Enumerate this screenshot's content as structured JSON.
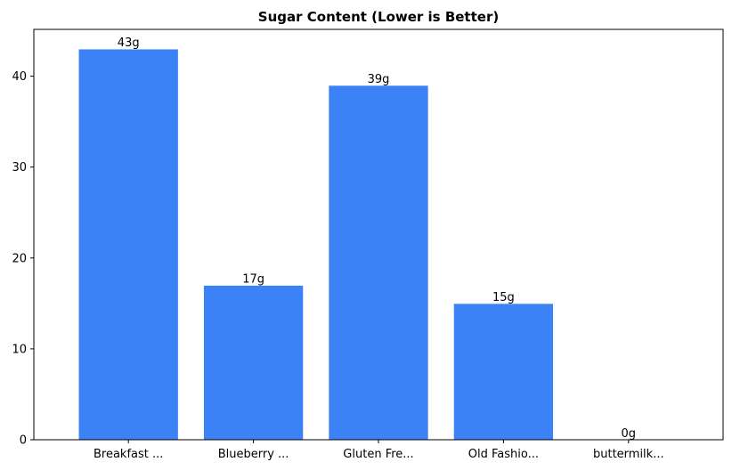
{
  "chart_data": {
    "type": "bar",
    "title": "Sugar Content (Lower is Better)",
    "xlabel": "",
    "ylabel": "",
    "categories": [
      "Breakfast ...",
      "Blueberry ...",
      "Gluten Fre...",
      "Old Fashio...",
      "buttermilk..."
    ],
    "values": [
      43,
      17,
      39,
      15,
      0
    ],
    "data_labels": [
      "43g",
      "17g",
      "39g",
      "15g",
      "0g"
    ],
    "ylim": [
      0,
      45.15
    ],
    "yticks": [
      0,
      10,
      20,
      30,
      40
    ],
    "ytick_labels": [
      "0",
      "10",
      "20",
      "30",
      "40"
    ],
    "grid": false,
    "legend": "none",
    "colors": {
      "bar_fill": "#3b82f6",
      "bar_edge": "#ffffff",
      "axis": "#000000",
      "text": "#000000"
    }
  }
}
